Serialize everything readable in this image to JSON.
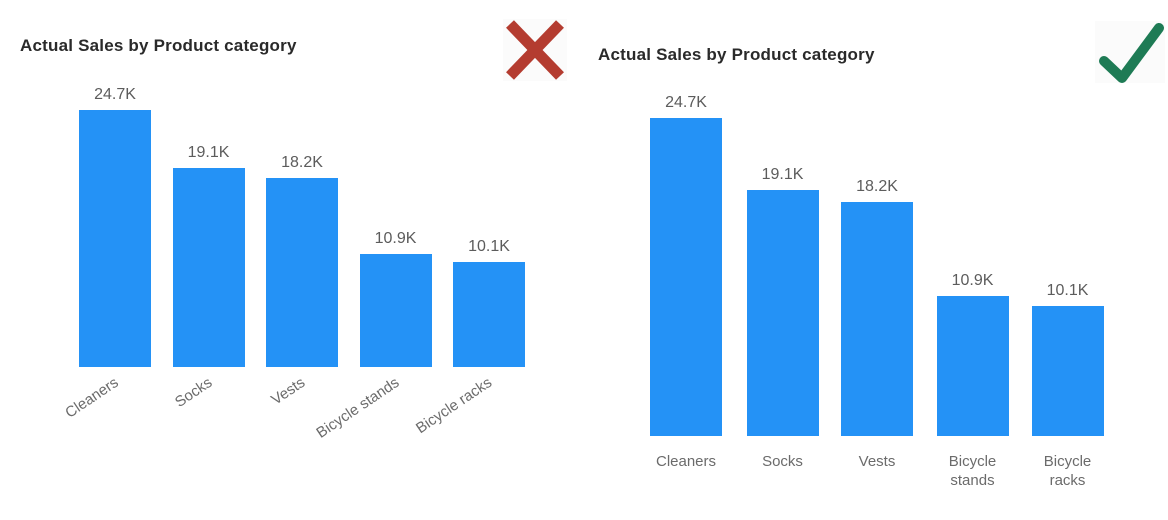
{
  "colors": {
    "background": "#FFFFFF",
    "bar": "#2492F6",
    "title_text": "#2A2A2A",
    "data_label": "#5C5C5C",
    "axis_label": "#6B6B6B",
    "cross": "#B43C30",
    "check": "#1E7B55"
  },
  "chart_data": [
    {
      "type": "bar",
      "title": "Actual Sales by Product category",
      "categories": [
        "Cleaners",
        "Socks",
        "Vests",
        "Bicycle stands",
        "Bicycle racks"
      ],
      "values": [
        24700,
        19100,
        18200,
        10900,
        10100
      ],
      "data_labels": [
        "24.7K",
        "19.1K",
        "18.2K",
        "10.9K",
        "10.1K"
      ],
      "xlabel": "",
      "ylabel": "",
      "ylim": [
        0,
        26000
      ],
      "grid": false,
      "legend": false,
      "y_axis_visible": false,
      "category_label_orientation": "rotated-diagonal",
      "verdict_icon": "cross-icon",
      "verdict_meaning": "bad-practice-example"
    },
    {
      "type": "bar",
      "title": "Actual Sales by Product category",
      "categories": [
        "Cleaners",
        "Socks",
        "Vests",
        "Bicycle stands",
        "Bicycle racks"
      ],
      "values": [
        24700,
        19100,
        18200,
        10900,
        10100
      ],
      "data_labels": [
        "24.7K",
        "19.1K",
        "18.2K",
        "10.9K",
        "10.1K"
      ],
      "xlabel": "",
      "ylabel": "",
      "ylim": [
        0,
        26000
      ],
      "grid": false,
      "legend": false,
      "y_axis_visible": false,
      "category_label_orientation": "horizontal-wrapped",
      "verdict_icon": "check-icon",
      "verdict_meaning": "good-practice-example"
    }
  ]
}
